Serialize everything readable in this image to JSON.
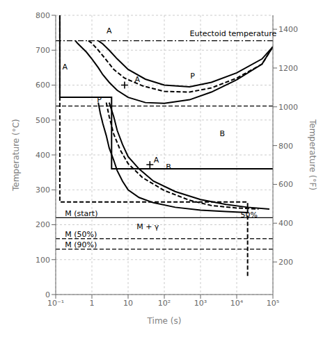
{
  "chart_data": {
    "type": "line",
    "log": "x",
    "grid": true,
    "color": "#000000",
    "xlabel": "Time (s)",
    "ylabel": "Temperature (°C)",
    "y2label": "Temperature (°F)",
    "xlim": [
      0.1,
      100000
    ],
    "xticks": [
      {
        "value": 0.1,
        "label": "10⁻¹"
      },
      1,
      10,
      {
        "value": 100,
        "label": "10²"
      },
      {
        "value": 1000,
        "label": "10³"
      },
      {
        "value": 10000,
        "label": "10⁴"
      },
      {
        "value": 100000,
        "label": "10⁵"
      }
    ],
    "ylim": [
      0,
      800
    ],
    "yticks": [
      0,
      100,
      200,
      300,
      400,
      500,
      600,
      700,
      800
    ],
    "y2lim": [
      32,
      1472
    ],
    "y2ticks": [
      200,
      400,
      600,
      800,
      1000,
      1200,
      1400
    ],
    "series": [
      {
        "type": "line",
        "line_style": "solid",
        "x": [
          0.35,
          0.4,
          0.5,
          0.7,
          1.0,
          1.5,
          2.0,
          3.0,
          5.0,
          10,
          30,
          100,
          500,
          2000,
          10000,
          50000,
          100000
        ],
        "values": [
          727,
          720,
          710,
          695,
          675,
          650,
          630,
          608,
          585,
          565,
          550,
          548,
          558,
          580,
          615,
          660,
          710
        ]
      },
      {
        "type": "line",
        "line_style": "solid",
        "x": [
          1.5,
          2.0,
          3.0,
          5.0,
          10,
          30,
          100,
          500,
          2000,
          10000,
          50000,
          100000
        ],
        "values": [
          727,
          718,
          700,
          675,
          645,
          617,
          600,
          595,
          608,
          635,
          675,
          710
        ]
      },
      {
        "type": "line",
        "line_style": "solid",
        "x": [
          1.5,
          1.7,
          2.0,
          2.5,
          3.0,
          4.0,
          5.0,
          7.0,
          10.0,
          20.0,
          50.0,
          200.0,
          1000.0,
          5000.0,
          20000.0
        ],
        "values": [
          550,
          520,
          490,
          455,
          420,
          385,
          355,
          325,
          300,
          278,
          263,
          250,
          242,
          238,
          235
        ]
      },
      {
        "type": "line",
        "line_style": "solid",
        "x": [
          3.0,
          4.0,
          5.0,
          7.0,
          10.0,
          20.0,
          50.0,
          200.0,
          1000.0,
          5000.0,
          20000.0,
          80000.0
        ],
        "values": [
          550,
          510,
          470,
          430,
          395,
          360,
          325,
          295,
          272,
          258,
          250,
          245
        ]
      },
      {
        "type": "line",
        "line_style": "dashed",
        "x": [
          0.8,
          1.0,
          1.5,
          2.5,
          4.0,
          8.0,
          25,
          100,
          500,
          2000,
          10000,
          50000,
          100000
        ],
        "values": [
          727,
          720,
          700,
          672,
          645,
          620,
          598,
          582,
          580,
          592,
          620,
          660,
          710
        ]
      },
      {
        "type": "line",
        "line_style": "dashed",
        "x": [
          2.5,
          3.0,
          4.0,
          6.0,
          10.0,
          25.0,
          100.0,
          500.0,
          2000.0,
          10000.0,
          40000.0
        ],
        "values": [
          550,
          510,
          460,
          415,
          375,
          335,
          298,
          270,
          255,
          248,
          245
        ]
      },
      {
        "type": "line",
        "line_style": "solid",
        "x": [
          0.13,
          0.13,
          1.8,
          3.5,
          3.5,
          100000
        ],
        "values": [
          800,
          565,
          565,
          565,
          360,
          360
        ]
      },
      {
        "type": "line",
        "line_style": "dashed",
        "x": [
          0.13,
          0.13,
          20000,
          20000
        ],
        "values": [
          800,
          265,
          265,
          50
        ]
      },
      {
        "type": "scatter",
        "marker": "plus",
        "x": [
          8,
          40
        ],
        "values": [
          600,
          372
        ]
      }
    ],
    "hlines": [
      {
        "y": 727,
        "line_style": "dashdot"
      },
      {
        "y": 540,
        "line_style": "dashed"
      },
      {
        "y": 220,
        "line_style": "solid"
      },
      {
        "y": 160,
        "line_style": "dashed"
      },
      {
        "y": 130,
        "line_style": "dashed"
      }
    ],
    "annotations": [
      {
        "text": "A",
        "x": 3,
        "y": 755
      },
      {
        "text": "Eutectoid temperature",
        "x": 8000,
        "y": 748
      },
      {
        "text": "A",
        "x": 0.18,
        "y": 652
      },
      {
        "text": "P",
        "x": 600,
        "y": 625
      },
      {
        "text": "B",
        "x": 4000,
        "y": 460
      },
      {
        "text": "A",
        "x": 18,
        "y": 615
      },
      {
        "text": "A",
        "x": 60,
        "y": 385
      },
      {
        "text": "B",
        "x": 130,
        "y": 365
      },
      {
        "text": "P",
        "x": 1.6,
        "y": 558
      },
      {
        "text": "M (start)",
        "x": 0.18,
        "y": 232
      },
      {
        "text": "M (50%)",
        "x": 0.18,
        "y": 172
      },
      {
        "text": "M (90%)",
        "x": 0.18,
        "y": 142
      },
      {
        "text": "M + γ",
        "x": 35,
        "y": 195
      },
      {
        "text": "50%",
        "x": 22000,
        "y": 228
      }
    ]
  }
}
